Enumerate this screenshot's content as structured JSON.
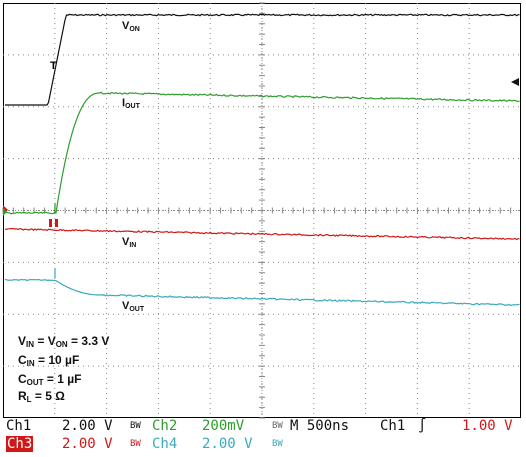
{
  "waveform_labels": {
    "von": {
      "main": "V",
      "sub": "ON"
    },
    "iout": {
      "main": "I",
      "sub": "OUT"
    },
    "vin": {
      "main": "V",
      "sub": "IN"
    },
    "vout": {
      "main": "V",
      "sub": "OUT"
    }
  },
  "conditions": {
    "line1": {
      "a": "V",
      "a_sub": "IN",
      "eq1": " = V",
      "b_sub": "ON",
      "rest": " = 3.3 V"
    },
    "line2": {
      "a": "C",
      "a_sub": "IN",
      "rest": " = 10 µF"
    },
    "line3": {
      "a": "C",
      "a_sub": "OUT",
      "rest": " = 1 µF"
    },
    "line4": {
      "a": "R",
      "a_sub": "L",
      "rest": " = 5 Ω"
    }
  },
  "status_row1": {
    "ch1_name": "Ch1",
    "ch1_scale": "2.00 V",
    "ch1_bw": "BW",
    "ch2_name": "Ch2",
    "ch2_scale": "200mV",
    "ch2_bw": "BW",
    "timebase": "M 500ns",
    "trigger_src": "Ch1",
    "trigger_slope": "∫",
    "trigger_level": "1.00 V"
  },
  "status_row2": {
    "ch3_name": "Ch3",
    "ch3_scale": "2.00 V",
    "ch3_bw": "BW",
    "ch4_name": "Ch4",
    "ch4_scale": "2.00 V",
    "ch4_bw": "BW"
  },
  "markers": {
    "trigger_t": "T",
    "ch_ref": "1"
  },
  "colors": {
    "ch1": "#111111",
    "ch2": "#2e9e2e",
    "ch3": "#d01818",
    "ch4": "#3aaabb",
    "grid": "#888888"
  }
}
